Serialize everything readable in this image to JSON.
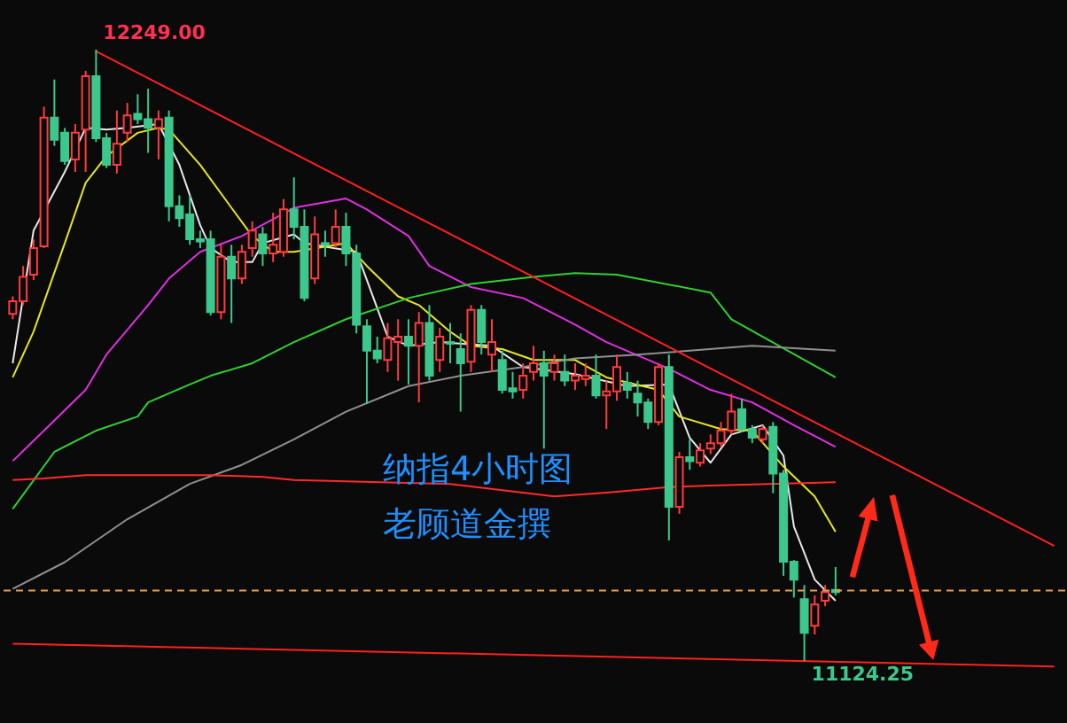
{
  "chart_data": {
    "type": "candlestick",
    "tick_labels": false,
    "categories": [
      null,
      null,
      null,
      null,
      null,
      null,
      null,
      null,
      null,
      null,
      null,
      null,
      null,
      null,
      null,
      null,
      null,
      null,
      null,
      null,
      null,
      null,
      null,
      null,
      null,
      null,
      null,
      null,
      null,
      null,
      null,
      null,
      null,
      null,
      null,
      null,
      null,
      null,
      null,
      null,
      null,
      null,
      null,
      null,
      null,
      null,
      null,
      null,
      null,
      null,
      null,
      null,
      null,
      null,
      null,
      null,
      null,
      null,
      null,
      null,
      null,
      null,
      null,
      null,
      null,
      null,
      null,
      null,
      null,
      null,
      null,
      null,
      null,
      null,
      null,
      null,
      null,
      null,
      null,
      null,
      null,
      null,
      null,
      null,
      null,
      null,
      null,
      null,
      null,
      null,
      null,
      null,
      null,
      null,
      null,
      null,
      null,
      null,
      null,
      null,
      null
    ],
    "ohlc": [
      [
        11763,
        11795,
        11753,
        11786
      ],
      [
        11786,
        11851,
        11779,
        11831
      ],
      [
        11835,
        11900,
        11825,
        11884
      ],
      [
        11887,
        12144,
        11884,
        12124
      ],
      [
        12124,
        12194,
        12072,
        12083
      ],
      [
        12096,
        12105,
        12037,
        12044
      ],
      [
        12047,
        12112,
        12024,
        12096
      ],
      [
        12102,
        12210,
        12024,
        12200
      ],
      [
        12200,
        12249,
        12079,
        12086
      ],
      [
        12086,
        12096,
        12031,
        12037
      ],
      [
        12037,
        12137,
        12021,
        12076
      ],
      [
        12096,
        12151,
        12079,
        12128
      ],
      [
        12131,
        12167,
        12112,
        12121
      ],
      [
        12121,
        12177,
        12059,
        12105
      ],
      [
        12105,
        12137,
        12047,
        12121
      ],
      [
        12124,
        12137,
        11933,
        11961
      ],
      [
        11961,
        11981,
        11923,
        11939
      ],
      [
        11946,
        11981,
        11890,
        11900
      ],
      [
        11900,
        11916,
        11884,
        11896
      ],
      [
        11900,
        11916,
        11760,
        11766
      ],
      [
        11766,
        11890,
        11753,
        11868
      ],
      [
        11868,
        11890,
        11746,
        11828
      ],
      [
        11828,
        11890,
        11818,
        11877
      ],
      [
        11884,
        11933,
        11868,
        11916
      ],
      [
        11909,
        11923,
        11851,
        11874
      ],
      [
        11874,
        11949,
        11858,
        11890
      ],
      [
        11877,
        11974,
        11868,
        11955
      ],
      [
        11955,
        12014,
        11900,
        11923
      ],
      [
        11923,
        11955,
        11786,
        11792
      ],
      [
        11828,
        11942,
        11818,
        11909
      ],
      [
        11893,
        11916,
        11868,
        11890
      ],
      [
        11893,
        11955,
        11884,
        11923
      ],
      [
        11923,
        11949,
        11851,
        11874
      ],
      [
        11874,
        11890,
        11727,
        11743
      ],
      [
        11740,
        11753,
        11597,
        11695
      ],
      [
        11695,
        11721,
        11672,
        11681
      ],
      [
        11678,
        11746,
        11656,
        11718
      ],
      [
        11711,
        11753,
        11640,
        11721
      ],
      [
        11721,
        11753,
        11633,
        11704
      ],
      [
        11704,
        11766,
        11600,
        11746
      ],
      [
        11746,
        11779,
        11640,
        11649
      ],
      [
        11678,
        11737,
        11656,
        11721
      ],
      [
        11711,
        11746,
        11672,
        11708
      ],
      [
        11698,
        11727,
        11583,
        11672
      ],
      [
        11675,
        11779,
        11656,
        11770
      ],
      [
        11770,
        11779,
        11688,
        11711
      ],
      [
        11688,
        11753,
        11656,
        11711
      ],
      [
        11678,
        11695,
        11616,
        11623
      ],
      [
        11626,
        11656,
        11607,
        11620
      ],
      [
        11623,
        11672,
        11607,
        11649
      ],
      [
        11656,
        11704,
        11640,
        11672
      ],
      [
        11672,
        11695,
        11515,
        11649
      ],
      [
        11656,
        11688,
        11640,
        11672
      ],
      [
        11656,
        11688,
        11630,
        11640
      ],
      [
        11640,
        11672,
        11623,
        11649
      ],
      [
        11643,
        11672,
        11630,
        11649
      ],
      [
        11649,
        11688,
        11607,
        11613
      ],
      [
        11613,
        11640,
        11551,
        11620
      ],
      [
        11620,
        11688,
        11603,
        11665
      ],
      [
        11636,
        11656,
        11607,
        11623
      ],
      [
        11616,
        11640,
        11574,
        11600
      ],
      [
        11600,
        11607,
        11551,
        11564
      ],
      [
        11564,
        11672,
        11558,
        11665
      ],
      [
        11665,
        11688,
        11346,
        11408
      ],
      [
        11408,
        11509,
        11395,
        11499
      ],
      [
        11499,
        11532,
        11476,
        11492
      ],
      [
        11489,
        11525,
        11482,
        11512
      ],
      [
        11515,
        11541,
        11505,
        11525
      ],
      [
        11525,
        11564,
        11518,
        11548
      ],
      [
        11548,
        11616,
        11541,
        11583
      ],
      [
        11587,
        11607,
        11545,
        11551
      ],
      [
        11551,
        11558,
        11525,
        11535
      ],
      [
        11532,
        11558,
        11525,
        11551
      ],
      [
        11555,
        11564,
        11433,
        11469
      ],
      [
        11469,
        11476,
        11281,
        11307
      ],
      [
        11307,
        11310,
        11241,
        11274
      ],
      [
        11238,
        11264,
        11124.25,
        11176
      ],
      [
        11189,
        11245,
        11173,
        11228
      ],
      [
        11235,
        11264,
        11225,
        11251
      ],
      [
        11255,
        11297,
        11245,
        11251
      ],
      null,
      null,
      null,
      null,
      null,
      null,
      null,
      null,
      null,
      null,
      null,
      null,
      null,
      null,
      null,
      null,
      null,
      null,
      null,
      null,
      null
    ],
    "colors": [
      "#ff3b3b",
      "#ff3b3b",
      "#ff3b3b",
      "#ff3b3b",
      "#3cc88c",
      "#3cc88c",
      "#ff3b3b",
      "#ff3b3b",
      "#3cc88c",
      "#3cc88c",
      "#ff3b3b",
      "#ff3b3b",
      "#3cc88c",
      "#3cc88c",
      "#ff3b3b",
      "#3cc88c",
      "#3cc88c",
      "#3cc88c",
      "#3cc88c",
      "#3cc88c",
      "#ff3b3b",
      "#3cc88c",
      "#ff3b3b",
      "#ff3b3b",
      "#3cc88c",
      "#ff3b3b",
      "#ff3b3b",
      "#3cc88c",
      "#3cc88c",
      "#ff3b3b",
      "#3cc88c",
      "#ff3b3b",
      "#3cc88c",
      "#3cc88c",
      "#3cc88c",
      "#3cc88c",
      "#ff3b3b",
      "#ff3b3b",
      "#3cc88c",
      "#ff3b3b",
      "#3cc88c",
      "#ff3b3b",
      "#3cc88c",
      "#3cc88c",
      "#ff3b3b",
      "#3cc88c",
      "#ff3b3b",
      "#3cc88c",
      "#3cc88c",
      "#ff3b3b",
      "#ff3b3b",
      "#3cc88c",
      "#ff3b3b",
      "#3cc88c",
      "#ff3b3b",
      "#ff3b3b",
      "#3cc88c",
      "#ff3b3b",
      "#ff3b3b",
      "#3cc88c",
      "#3cc88c",
      "#3cc88c",
      "#ff3b3b",
      "#3cc88c",
      "#ff3b3b",
      "#3cc88c",
      "#ff3b3b",
      "#ff3b3b",
      "#ff3b3b",
      "#ff3b3b",
      "#3cc88c",
      "#3cc88c",
      "#ff3b3b",
      "#3cc88c",
      "#3cc88c",
      "#3cc88c",
      "#3cc88c",
      "#ff3b3b",
      "#ff3b3b",
      "#3cc88c",
      null,
      null,
      null,
      null,
      null,
      null,
      null,
      null,
      null,
      null,
      null,
      null,
      null,
      null,
      null,
      null,
      null,
      null,
      null,
      null,
      null
    ],
    "series": [
      {
        "type": "line",
        "color": "#e8e8e8",
        "values": [
          11672,
          null,
          11916,
          null,
          null,
          12024,
          null,
          12105,
          null,
          12102,
          null,
          12105,
          null,
          null,
          12112,
          null,
          12037,
          null,
          11926,
          11884,
          null,
          11858,
          null,
          11858,
          11893,
          null,
          null,
          11909,
          11893,
          null,
          null,
          null,
          null,
          11877,
          null,
          null,
          11721,
          null,
          11704,
          null,
          null,
          11711,
          null,
          null,
          null,
          null,
          11704,
          null,
          null,
          11665,
          null,
          null,
          null,
          null,
          11652,
          null,
          null,
          null,
          null,
          11630,
          null,
          null,
          null,
          11633,
          null,
          11535,
          null,
          11489,
          null,
          11541,
          null,
          null,
          11558,
          null,
          11502,
          11372,
          null,
          11274,
          null,
          11235,
          null,
          null,
          null,
          null,
          null,
          null,
          null,
          null,
          null,
          null,
          null,
          null,
          null,
          null,
          null,
          null,
          null,
          null,
          null,
          null,
          null
        ]
      },
      {
        "type": "line",
        "color": "#e6e620",
        "values": [
          11646,
          null,
          11730,
          null,
          null,
          11893,
          null,
          12004,
          null,
          12053,
          null,
          null,
          12096,
          null,
          12105,
          12102,
          null,
          null,
          12037,
          null,
          null,
          11958,
          null,
          11906,
          null,
          11877,
          null,
          11877,
          null,
          null,
          null,
          null,
          11893,
          null,
          11851,
          null,
          null,
          11795,
          null,
          11779,
          null,
          null,
          11730,
          null,
          11704,
          null,
          null,
          11698,
          null,
          null,
          11678,
          null,
          null,
          null,
          11678,
          null,
          null,
          11646,
          null,
          null,
          null,
          null,
          11623,
          null,
          11574,
          null,
          null,
          null,
          11551,
          null,
          null,
          11548,
          null,
          null,
          11482,
          null,
          null,
          11427,
          null,
          11362,
          null,
          null,
          null,
          null,
          null,
          null,
          null,
          null,
          null,
          null,
          null,
          null,
          null,
          null,
          null,
          null,
          null,
          null,
          null,
          null,
          null
        ]
      },
      {
        "type": "line",
        "color": "#e030e0",
        "values": [
          11492,
          null,
          null,
          11548,
          null,
          null,
          null,
          11623,
          null,
          11688,
          null,
          null,
          null,
          11779,
          null,
          11828,
          null,
          null,
          11877,
          null,
          null,
          null,
          11906,
          null,
          null,
          null,
          null,
          11958,
          null,
          null,
          null,
          null,
          11975,
          null,
          11955,
          null,
          null,
          null,
          11906,
          null,
          11851,
          null,
          null,
          null,
          11812,
          null,
          null,
          null,
          null,
          11792,
          null,
          null,
          null,
          null,
          11743,
          null,
          null,
          11711,
          null,
          null,
          null,
          null,
          null,
          11662,
          null,
          null,
          null,
          11623,
          null,
          null,
          null,
          11600,
          null,
          null,
          null,
          11558,
          null,
          null,
          null,
          11518,
          null,
          null,
          null,
          null,
          null,
          null,
          null,
          null,
          null,
          null,
          null,
          null,
          null,
          null,
          null,
          null,
          null,
          null,
          null,
          null,
          null
        ]
      },
      {
        "type": "line",
        "color": "#30d030",
        "values": [
          11404,
          null,
          null,
          null,
          11509,
          null,
          null,
          null,
          11548,
          null,
          null,
          null,
          11574,
          11600,
          null,
          null,
          null,
          11633,
          null,
          11649,
          null,
          null,
          null,
          11672,
          null,
          null,
          null,
          11711,
          null,
          null,
          null,
          null,
          11753,
          null,
          null,
          null,
          null,
          null,
          11792,
          null,
          null,
          null,
          null,
          null,
          11818,
          null,
          null,
          null,
          null,
          null,
          11831,
          null,
          null,
          null,
          11838,
          null,
          null,
          null,
          11835,
          null,
          null,
          null,
          null,
          null,
          null,
          null,
          null,
          11802,
          null,
          11753,
          null,
          null,
          null,
          null,
          null,
          null,
          null,
          null,
          null,
          11646,
          null,
          null,
          null,
          null,
          null,
          null,
          null,
          null,
          null,
          null,
          null,
          null,
          null,
          null,
          null,
          null,
          null,
          null,
          null,
          null,
          null
        ]
      },
      {
        "type": "line",
        "color": "#909090",
        "values": [
          11257,
          null,
          null,
          null,
          null,
          11306,
          null,
          null,
          null,
          null,
          null,
          11385,
          null,
          null,
          null,
          null,
          null,
          11450,
          null,
          null,
          null,
          null,
          11485,
          null,
          null,
          null,
          null,
          11532,
          null,
          null,
          null,
          null,
          11583,
          null,
          null,
          null,
          null,
          null,
          11630,
          null,
          null,
          null,
          null,
          11649,
          null,
          null,
          null,
          null,
          null,
          11665,
          null,
          null,
          null,
          null,
          11681,
          null,
          null,
          null,
          null,
          null,
          11688,
          null,
          null,
          null,
          null,
          11695,
          null,
          null,
          null,
          null,
          null,
          11704,
          null,
          null,
          null,
          null,
          null,
          null,
          null,
          11695,
          null,
          null,
          null,
          null,
          null,
          null,
          null,
          null,
          null,
          null,
          null,
          null,
          null,
          null,
          null,
          null,
          null,
          null,
          null,
          null,
          null
        ]
      },
      {
        "type": "line",
        "color": "#ff2a2a",
        "values": [
          11457,
          null,
          null,
          11460,
          null,
          null,
          null,
          11466,
          null,
          null,
          null,
          null,
          null,
          null,
          null,
          null,
          null,
          null,
          null,
          11466,
          null,
          null,
          null,
          null,
          11463,
          null,
          null,
          11457,
          null,
          null,
          null,
          null,
          null,
          null,
          null,
          null,
          null,
          null,
          null,
          null,
          null,
          null,
          11450,
          null,
          null,
          null,
          null,
          null,
          null,
          null,
          null,
          null,
          11427,
          null,
          null,
          null,
          null,
          11434,
          null,
          null,
          null,
          null,
          null,
          11444,
          null,
          null,
          null,
          11447,
          null,
          null,
          null,
          null,
          null,
          null,
          null,
          null,
          null,
          null,
          null,
          11453,
          null,
          null,
          null,
          null,
          null,
          null,
          null,
          null,
          null,
          null,
          null,
          null,
          null,
          null,
          null,
          null,
          null,
          null,
          null,
          null,
          null
        ]
      },
      {
        "type": "line",
        "color": "#ff2020",
        "values": [
          null,
          null,
          null,
          null,
          null,
          null,
          null,
          null,
          12246,
          null,
          null,
          null,
          null,
          null,
          null,
          null,
          null,
          null,
          null,
          null,
          null,
          null,
          null,
          null,
          null,
          null,
          null,
          null,
          null,
          null,
          null,
          null,
          null,
          null,
          null,
          null,
          null,
          null,
          null,
          null,
          null,
          null,
          null,
          null,
          null,
          null,
          null,
          null,
          null,
          null,
          null,
          null,
          null,
          null,
          null,
          null,
          null,
          null,
          null,
          null,
          null,
          null,
          null,
          null,
          null,
          null,
          null,
          null,
          null,
          null,
          null,
          null,
          null,
          null,
          null,
          null,
          null,
          null,
          null,
          null,
          null,
          null,
          null,
          null,
          null,
          null,
          null,
          null,
          null,
          null,
          null,
          null,
          null,
          null,
          null,
          null,
          null,
          null,
          null,
          null,
          11336
        ]
      },
      {
        "type": "line",
        "color": "#ff2020",
        "values": [
          11156,
          null,
          null,
          null,
          null,
          null,
          null,
          null,
          null,
          null,
          null,
          null,
          null,
          null,
          null,
          null,
          null,
          null,
          null,
          null,
          null,
          null,
          null,
          null,
          null,
          null,
          null,
          null,
          null,
          null,
          null,
          null,
          null,
          null,
          null,
          null,
          null,
          null,
          null,
          null,
          null,
          null,
          null,
          null,
          null,
          null,
          null,
          null,
          null,
          null,
          null,
          null,
          null,
          null,
          null,
          null,
          null,
          null,
          null,
          null,
          null,
          null,
          null,
          null,
          null,
          null,
          null,
          null,
          null,
          null,
          null,
          null,
          null,
          null,
          null,
          null,
          null,
          null,
          null,
          null,
          null,
          null,
          null,
          null,
          null,
          null,
          null,
          null,
          null,
          null,
          null,
          null,
          null,
          null,
          null,
          null,
          null,
          null,
          null,
          null,
          11114
        ]
      }
    ],
    "ref_lines": [
      {
        "axis": "y",
        "value": 11254,
        "color": "#e0a050",
        "line_style": "dashed"
      }
    ],
    "annotations": [
      "12249.00",
      {
        "text": "11124.25",
        "y": 11124.25
      },
      "纳指4小时图",
      "老顾道金撰"
    ]
  }
}
